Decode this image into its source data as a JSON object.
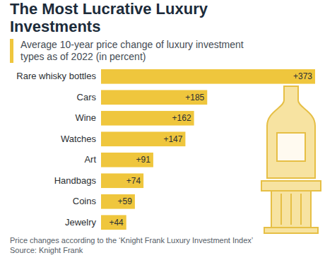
{
  "chart_data": {
    "type": "bar",
    "orientation": "horizontal",
    "title": "The Most Lucrative Luxury Investments",
    "subtitle": "Average 10-year price change of luxury investment types as of 2022 (in percent)",
    "categories": [
      "Rare whisky bottles",
      "Cars",
      "Wine",
      "Watches",
      "Art",
      "Handbags",
      "Coins",
      "Jewelry"
    ],
    "values": [
      373,
      185,
      162,
      147,
      91,
      74,
      59,
      44
    ],
    "value_labels": [
      "+373",
      "+185",
      "+162",
      "+147",
      "+91",
      "+74",
      "+59",
      "+44"
    ],
    "color": "#efc63d",
    "xlim": [
      0,
      373
    ],
    "data_labels": true,
    "tick_labels": "y",
    "grid": false,
    "note": "Price changes according to the ‘Knight Frank Luxury Investment Index’",
    "source": "Source: Knight Frank"
  }
}
